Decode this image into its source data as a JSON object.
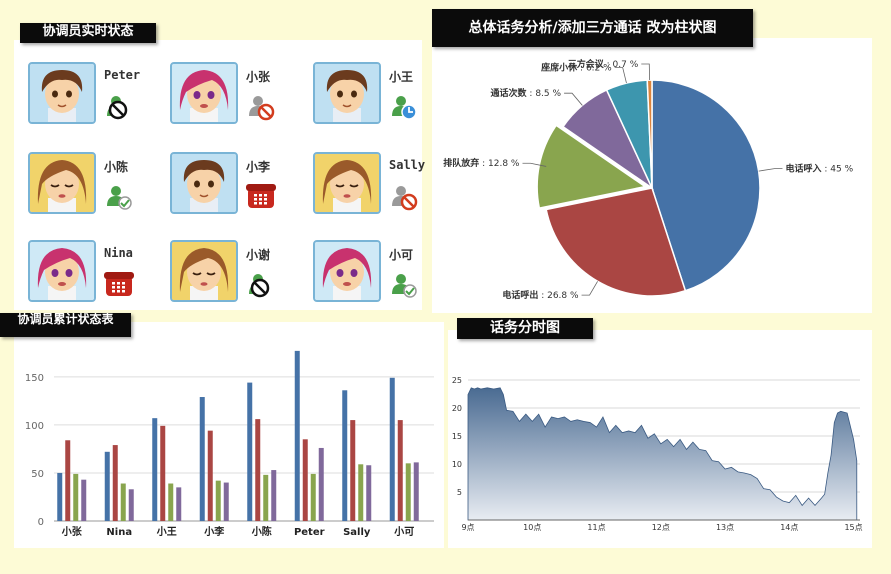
{
  "sections": {
    "agent_status_title": "协调员实时状态",
    "overall_title": "总体话务分析/添加三方通话 改为柱状图",
    "cumulative_title": "协调员累计状态表",
    "timeline_title": "话务分时图"
  },
  "agents": [
    {
      "name": "Peter",
      "avatar": "boy",
      "status": "busy-icon"
    },
    {
      "name": "小张",
      "avatar": "pink-girl",
      "status": "disabled-icon"
    },
    {
      "name": "小王",
      "avatar": "boy",
      "status": "timer-icon"
    },
    {
      "name": "小陈",
      "avatar": "brown-girl",
      "status": "available-icon"
    },
    {
      "name": "小李",
      "avatar": "boy",
      "status": "phone-icon"
    },
    {
      "name": "Sally",
      "avatar": "brown-girl",
      "status": "disabled-icon"
    },
    {
      "name": "Nina",
      "avatar": "pink-girl",
      "status": "phone-icon"
    },
    {
      "name": "小谢",
      "avatar": "brown-girl",
      "status": "busy-icon"
    },
    {
      "name": "小可",
      "avatar": "pink-girl",
      "status": "available-icon"
    }
  ],
  "colors": {
    "blue": "#4572a7",
    "red": "#aa4643",
    "green": "#89a54e",
    "purple": "#80699b",
    "teal": "#3d96ae",
    "orange": "#db843d",
    "area_top": "#4a6b92",
    "area_bottom": "#e8ecf2"
  },
  "chart_data": [
    {
      "type": "pie",
      "slices": [
        {
          "label": "电话呼入",
          "value": 45,
          "display": "45 %",
          "color": "#4572a7"
        },
        {
          "label": "电话呼出",
          "value": 26.8,
          "display": "26.8 %",
          "color": "#aa4643"
        },
        {
          "label": "排队放弃",
          "value": 12.8,
          "display": "12.8 %",
          "color": "#89a54e"
        },
        {
          "label": "通话次数",
          "value": 8.5,
          "display": "8.5 %",
          "color": "#80699b"
        },
        {
          "label": "座席小休",
          "value": 6.2,
          "display": "6.2 %",
          "color": "#3d96ae"
        },
        {
          "label": "三方会议",
          "value": 0.7,
          "display": "0.7 %",
          "color": "#db843d"
        }
      ]
    },
    {
      "type": "bar",
      "categories": [
        "小张",
        "Nina",
        "小王",
        "小李",
        "小陈",
        "Peter",
        "Sally",
        "小可"
      ],
      "series": [
        {
          "values": [
            50,
            72,
            107,
            129,
            144,
            177,
            136,
            149
          ]
        },
        {
          "values": [
            84,
            79,
            99,
            94,
            106,
            85,
            105,
            105
          ]
        },
        {
          "values": [
            49,
            39,
            39,
            42,
            48,
            49,
            59,
            60
          ]
        },
        {
          "values": [
            43,
            33,
            35,
            40,
            53,
            76,
            58,
            61
          ]
        }
      ],
      "ylim": [
        0,
        180
      ],
      "yticks": [
        "0",
        "50",
        "100",
        "150"
      ],
      "grid": true
    },
    {
      "type": "area",
      "xticks": [
        "9点",
        "10点",
        "11点",
        "12点",
        "13点",
        "14点",
        "15点"
      ],
      "yticks": [
        "5",
        "10",
        "15",
        "20",
        "25"
      ],
      "ylim": [
        0,
        25
      ],
      "xlim": [
        9,
        15.1
      ],
      "x": [
        9.0,
        9.05,
        9.1,
        9.15,
        9.2,
        9.3,
        9.4,
        9.5,
        9.55,
        9.6,
        9.7,
        9.8,
        9.9,
        10.0,
        10.1,
        10.2,
        10.3,
        10.4,
        10.5,
        10.6,
        10.7,
        10.8,
        10.9,
        11.0,
        11.1,
        11.2,
        11.3,
        11.4,
        11.5,
        11.6,
        11.7,
        11.8,
        11.9,
        12.0,
        12.1,
        12.2,
        12.3,
        12.4,
        12.5,
        12.6,
        12.7,
        12.8,
        12.9,
        13.0,
        13.1,
        13.2,
        13.3,
        13.4,
        13.5,
        13.6,
        13.7,
        13.8,
        13.9,
        14.0,
        14.1,
        14.2,
        14.3,
        14.4,
        14.5,
        14.55,
        14.6,
        14.65,
        14.7,
        14.75,
        14.8,
        14.9,
        15.0,
        15.05
      ],
      "y": [
        22,
        24,
        23,
        24,
        23,
        24,
        23,
        24,
        22,
        20,
        19,
        18,
        18.5,
        18,
        18.5,
        17,
        18,
        18.5,
        18,
        18,
        17.5,
        18,
        17,
        17,
        18,
        16,
        16.5,
        16,
        15.5,
        16,
        16.5,
        15,
        15,
        14,
        14,
        13.5,
        14,
        13,
        13.5,
        13,
        12,
        11,
        10,
        9.5,
        9,
        9,
        8,
        8.5,
        7,
        6,
        5,
        4.5,
        3,
        3.5,
        4,
        3,
        3.5,
        3,
        3.5,
        5,
        8,
        12,
        17,
        19.5,
        19,
        19.5,
        14,
        11
      ]
    }
  ]
}
